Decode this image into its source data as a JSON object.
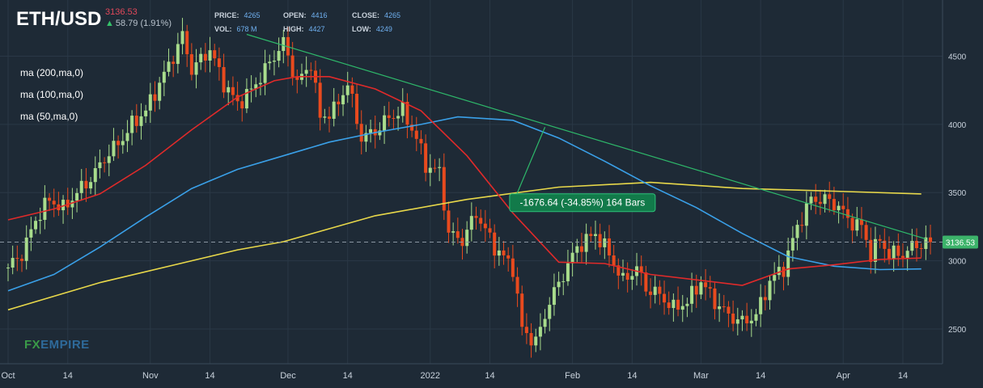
{
  "header": {
    "symbol": "ETH/USD",
    "price": "3136.53",
    "change": "58.79 (1.91%)",
    "price_label": "PRICE:",
    "price_value": "4265",
    "vol_label": "VOL:",
    "vol_value": "678 M",
    "open_label": "OPEN:",
    "open_value": "4416",
    "high_label": "HIGH:",
    "high_value": "4427",
    "close_label": "CLOSE:",
    "close_value": "4265",
    "low_label": "LOW:",
    "low_value": "4249"
  },
  "indicators": [
    {
      "label": "ma (200,ma,0)",
      "color": "#e8d84a"
    },
    {
      "label": "ma (100,ma,0)",
      "color": "#3aa0e8"
    },
    {
      "label": "ma (50,ma,0)",
      "color": "#e02a2a"
    }
  ],
  "annotation": {
    "text": "-1676.64 (-34.85%) 164 Bars"
  },
  "current_price_tag": "3136.53",
  "logo": {
    "fx": "FX",
    "empire": "EMPIRE"
  },
  "colors": {
    "background": "#1e2a36",
    "bull": "#a8dc8c",
    "bear": "#e84a1e",
    "trendline": "#2eb86a",
    "axis_text": "#c9d2dc"
  },
  "chart_data": {
    "type": "candlestick",
    "title": "ETH/USD",
    "y_axis": {
      "ticks": [
        2500,
        3000,
        3500,
        4000,
        4500
      ],
      "range": [
        2150,
        4900
      ],
      "position": "right"
    },
    "x_axis": {
      "ticks": [
        "Oct",
        "14",
        "Nov",
        "14",
        "Dec",
        "14",
        "2022",
        "14",
        "Feb",
        "14",
        "Mar",
        "14",
        "Apr",
        "14"
      ],
      "range_days": [
        0,
        201
      ]
    },
    "x_tick_days": [
      0,
      13,
      31,
      44,
      61,
      74,
      92,
      105,
      123,
      136,
      151,
      164,
      182,
      195
    ],
    "close_points": [
      [
        0,
        2950
      ],
      [
        3,
        3050
      ],
      [
        6,
        3300
      ],
      [
        9,
        3450
      ],
      [
        12,
        3380
      ],
      [
        15,
        3500
      ],
      [
        18,
        3600
      ],
      [
        21,
        3750
      ],
      [
        25,
        3900
      ],
      [
        27,
        4000
      ],
      [
        30,
        4100
      ],
      [
        33,
        4300
      ],
      [
        36,
        4500
      ],
      [
        38,
        4650
      ],
      [
        40,
        4400
      ],
      [
        44,
        4550
      ],
      [
        47,
        4300
      ],
      [
        50,
        4150
      ],
      [
        53,
        4250
      ],
      [
        56,
        4400
      ],
      [
        60,
        4600
      ],
      [
        63,
        4300
      ],
      [
        66,
        4450
      ],
      [
        68,
        4050
      ],
      [
        71,
        4100
      ],
      [
        74,
        4300
      ],
      [
        77,
        3900
      ],
      [
        80,
        3950
      ],
      [
        83,
        4050
      ],
      [
        86,
        4100
      ],
      [
        89,
        3900
      ],
      [
        91,
        3700
      ],
      [
        94,
        3650
      ],
      [
        96,
        3200
      ],
      [
        99,
        3150
      ],
      [
        102,
        3350
      ],
      [
        106,
        3100
      ],
      [
        110,
        2950
      ],
      [
        112,
        2500
      ],
      [
        115,
        2400
      ],
      [
        118,
        2700
      ],
      [
        121,
        2900
      ],
      [
        124,
        3100
      ],
      [
        128,
        3200
      ],
      [
        131,
        3050
      ],
      [
        134,
        2850
      ],
      [
        137,
        2950
      ],
      [
        139,
        2800
      ],
      [
        142,
        2750
      ],
      [
        145,
        2650
      ],
      [
        148,
        2700
      ],
      [
        151,
        2850
      ],
      [
        154,
        2700
      ],
      [
        157,
        2600
      ],
      [
        160,
        2550
      ],
      [
        163,
        2600
      ],
      [
        166,
        2850
      ],
      [
        169,
        2950
      ],
      [
        172,
        3250
      ],
      [
        175,
        3450
      ],
      [
        178,
        3450
      ],
      [
        181,
        3400
      ],
      [
        183,
        3300
      ],
      [
        186,
        3250
      ],
      [
        188,
        3050
      ],
      [
        190,
        3150
      ],
      [
        192,
        3050
      ],
      [
        195,
        3050
      ],
      [
        197,
        3100
      ],
      [
        200,
        3136.53
      ]
    ],
    "series": [
      {
        "name": "ma (200,ma,0)",
        "points": [
          [
            0,
            2640
          ],
          [
            20,
            2840
          ],
          [
            40,
            3000
          ],
          [
            50,
            3080
          ],
          [
            60,
            3140
          ],
          [
            80,
            3330
          ],
          [
            100,
            3450
          ],
          [
            120,
            3540
          ],
          [
            140,
            3575
          ],
          [
            160,
            3530
          ],
          [
            180,
            3510
          ],
          [
            199,
            3490
          ]
        ]
      },
      {
        "name": "ma (100,ma,0)",
        "points": [
          [
            0,
            2780
          ],
          [
            10,
            2900
          ],
          [
            20,
            3100
          ],
          [
            30,
            3320
          ],
          [
            40,
            3530
          ],
          [
            50,
            3670
          ],
          [
            60,
            3770
          ],
          [
            70,
            3870
          ],
          [
            80,
            3940
          ],
          [
            90,
            4000
          ],
          [
            98,
            4055
          ],
          [
            110,
            4030
          ],
          [
            120,
            3900
          ],
          [
            130,
            3730
          ],
          [
            140,
            3550
          ],
          [
            150,
            3390
          ],
          [
            160,
            3200
          ],
          [
            170,
            3030
          ],
          [
            180,
            2960
          ],
          [
            190,
            2935
          ],
          [
            199,
            2940
          ]
        ]
      },
      {
        "name": "ma (50,ma,0)",
        "points": [
          [
            0,
            3300
          ],
          [
            10,
            3380
          ],
          [
            20,
            3490
          ],
          [
            30,
            3700
          ],
          [
            40,
            3960
          ],
          [
            50,
            4200
          ],
          [
            58,
            4320
          ],
          [
            63,
            4350
          ],
          [
            70,
            4350
          ],
          [
            80,
            4260
          ],
          [
            90,
            4100
          ],
          [
            100,
            3770
          ],
          [
            110,
            3350
          ],
          [
            120,
            2990
          ],
          [
            130,
            2980
          ],
          [
            140,
            2900
          ],
          [
            150,
            2860
          ],
          [
            160,
            2820
          ],
          [
            170,
            2940
          ],
          [
            180,
            2970
          ],
          [
            190,
            3010
          ],
          [
            199,
            3020
          ]
        ]
      }
    ],
    "trendline": [
      [
        52,
        4660
      ],
      [
        200,
        3160
      ]
    ],
    "measure_line": [
      [
        110,
        3420
      ],
      [
        117,
        3980
      ]
    ],
    "current_price": 3136.53
  }
}
